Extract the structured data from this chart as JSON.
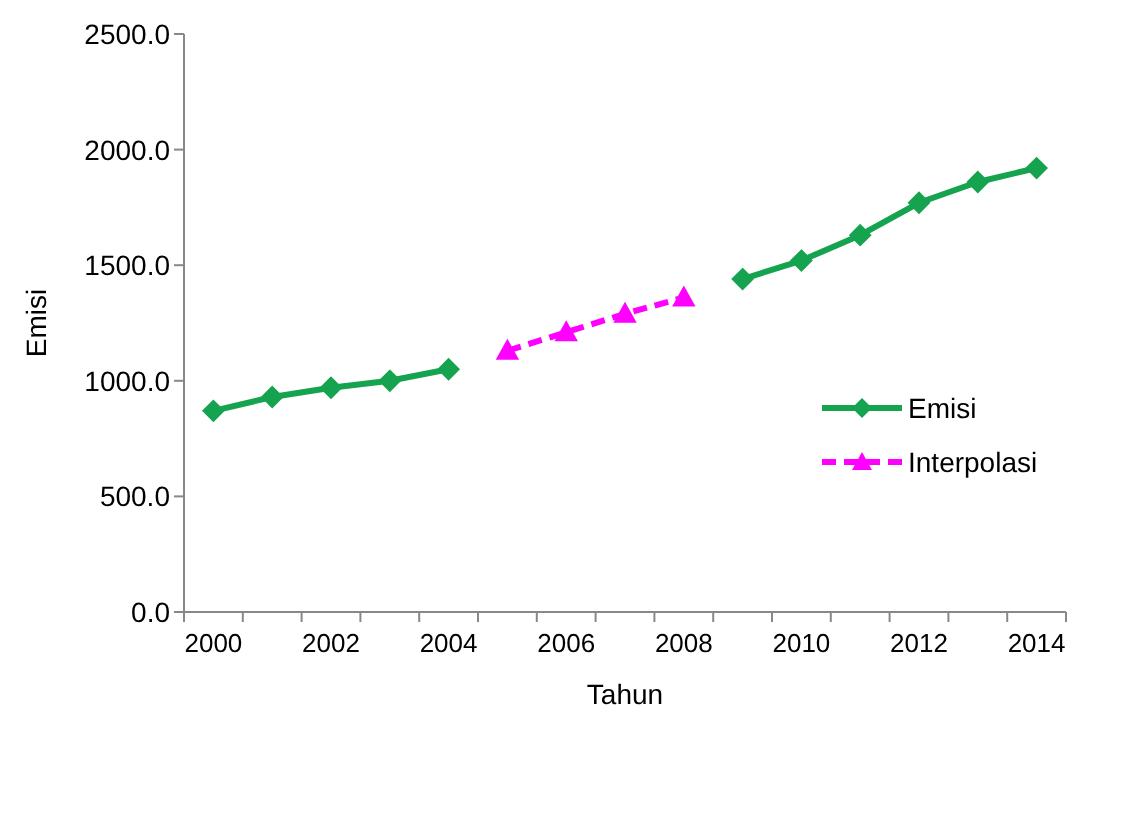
{
  "chart_data": {
    "type": "line",
    "xlabel": "Tahun",
    "ylabel": "Emisi",
    "categories": [
      "2000",
      null,
      "2002",
      null,
      "2004",
      null,
      "2006",
      null,
      "2008",
      null,
      "2010",
      null,
      "2012",
      null,
      "2014"
    ],
    "series": [
      {
        "name": "Emisi",
        "color": "#16a34f",
        "marker": "diamond",
        "line_style": "solid",
        "values": [
          870,
          930,
          970,
          1000,
          1050,
          null,
          null,
          null,
          null,
          1440,
          1520,
          1630,
          1770,
          1860,
          1920
        ]
      },
      {
        "name": "Interpolasi",
        "color": "#ff00ff",
        "marker": "triangle",
        "line_style": "dashed",
        "values": [
          null,
          null,
          null,
          null,
          null,
          1130,
          1210,
          1290,
          1360,
          null,
          null,
          null,
          null,
          null,
          null
        ]
      }
    ],
    "ylim": [
      0,
      2500
    ],
    "yticks": [
      {
        "value": 0,
        "label": "0.0"
      },
      {
        "value": 500,
        "label": "500.0"
      },
      {
        "value": 1000,
        "label": "1000.0"
      },
      {
        "value": 1500,
        "label": "1500.0"
      },
      {
        "value": 2000,
        "label": "2000.0"
      },
      {
        "value": 2500,
        "label": "2500.0"
      }
    ],
    "grid": false,
    "legend": "right"
  }
}
